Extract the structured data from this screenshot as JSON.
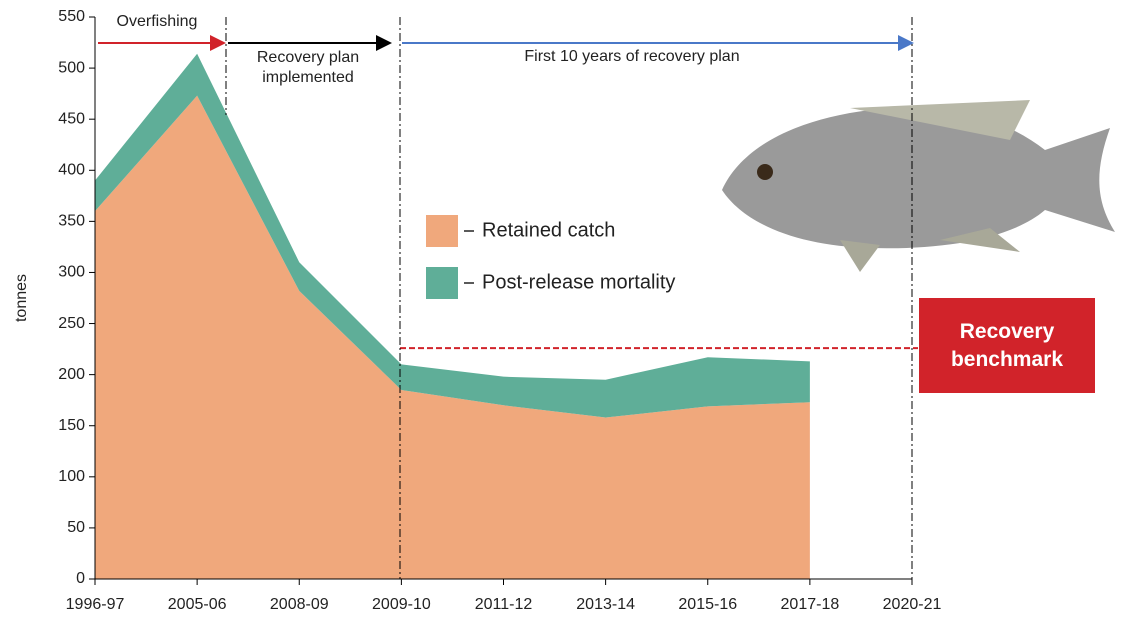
{
  "chart_data": {
    "type": "stacked-area",
    "y_label": "tonnes",
    "categories": [
      "1996-97",
      "2005-06",
      "2008-09",
      "2009-10",
      "2011-12",
      "2013-14",
      "2015-16",
      "2017-18",
      "2020-21"
    ],
    "series": [
      {
        "name": "Retained catch",
        "color": "#f0a87c",
        "values": [
          360,
          473,
          282,
          185,
          170,
          158,
          169,
          173,
          null
        ]
      },
      {
        "name": "Post-release mortality",
        "color": "#5fae98",
        "values": [
          30,
          41,
          28,
          25,
          28,
          37,
          48,
          40,
          null
        ]
      }
    ],
    "ylim": [
      0,
      550
    ],
    "yticks": [
      0,
      50,
      100,
      150,
      200,
      250,
      300,
      350,
      400,
      450,
      500,
      550
    ],
    "benchmark": {
      "value": 226,
      "label": "Recovery benchmark",
      "color": "#d1232a"
    },
    "annotations": [
      "Overfishing",
      "Recovery plan implemented",
      "First 10 years of recovery plan"
    ]
  }
}
